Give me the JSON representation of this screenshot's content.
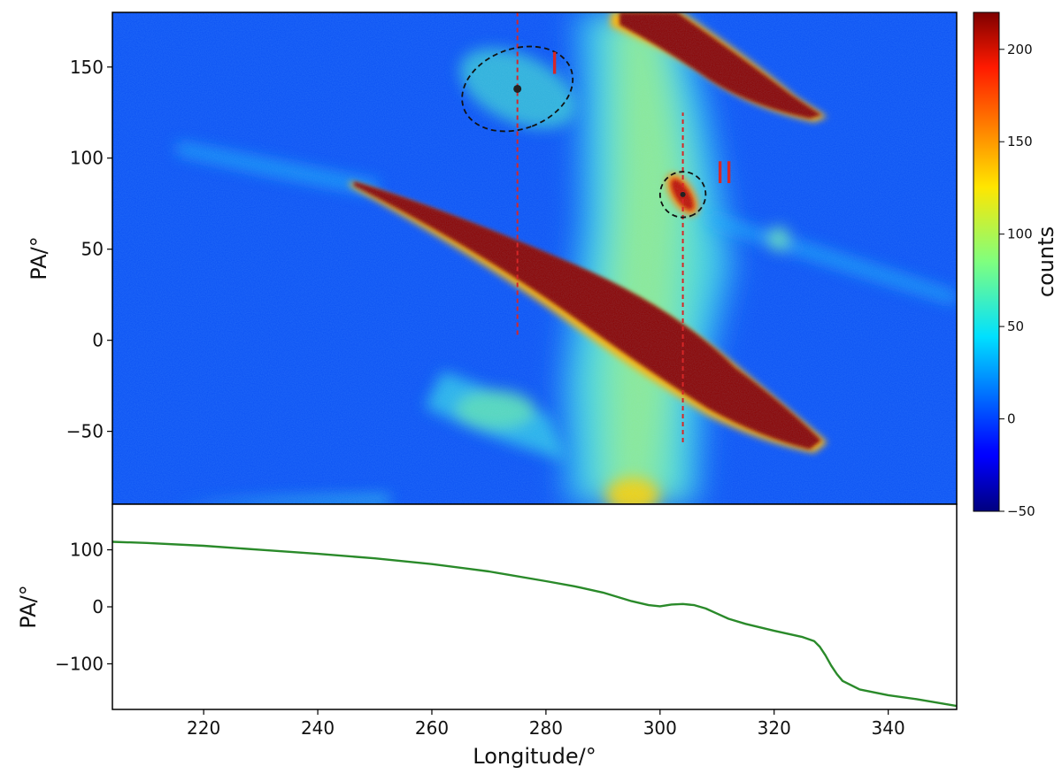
{
  "chart_data": [
    {
      "type": "heatmap",
      "title": "",
      "xlabel": "",
      "ylabel": "PA/°",
      "xlim": [
        204,
        352
      ],
      "ylim": [
        -90,
        180
      ],
      "yticks": [
        150,
        100,
        50,
        0,
        -50
      ],
      "yticklabels": [
        "150",
        "100",
        "50",
        "0",
        "−50"
      ],
      "colorbar": {
        "label": "counts",
        "range": [
          -50,
          220
        ],
        "ticks": [
          200,
          150,
          100,
          50,
          0,
          -50
        ],
        "ticklabels": [
          "200",
          "150",
          "100",
          "50",
          "0",
          "−50"
        ],
        "colormap": "jet"
      },
      "markers": [
        {
          "label": "I",
          "lon": 275,
          "pa": 138,
          "ellipse_width": 20,
          "ellipse_height": 44,
          "ellipse_angle_deg": -20,
          "line_pa": [
            3,
            180
          ]
        },
        {
          "label": "II",
          "lon": 304,
          "pa": 80,
          "ellipse_width": 8,
          "ellipse_height": 25,
          "ellipse_angle_deg": -30,
          "line_pa": [
            -56,
            125
          ]
        }
      ],
      "colors": {
        "marker_line": "#d62728",
        "ellipse": "#111111",
        "label": "#d62728"
      }
    },
    {
      "type": "line",
      "xlabel": "Longitude/°",
      "ylabel": "PA/°",
      "xlim": [
        204,
        352
      ],
      "ylim": [
        -180,
        180
      ],
      "xticks": [
        220,
        240,
        260,
        280,
        300,
        320,
        340
      ],
      "xticklabels": [
        "220",
        "240",
        "260",
        "280",
        "300",
        "320",
        "340"
      ],
      "yticks": [
        100,
        0,
        -100
      ],
      "yticklabels": [
        "100",
        "0",
        "−100"
      ],
      "series": [
        {
          "color": "#2a8a2a",
          "x": [
            204,
            210,
            220,
            230,
            240,
            250,
            260,
            270,
            280,
            285,
            290,
            295,
            298,
            300,
            302,
            304,
            306,
            308,
            310,
            312,
            315,
            320,
            325,
            327,
            328,
            329,
            330,
            331,
            332,
            335,
            340,
            345,
            352
          ],
          "y": [
            114,
            112,
            107,
            100,
            93,
            85,
            75,
            62,
            45,
            36,
            25,
            10,
            3,
            1,
            4,
            5,
            3,
            -3,
            -12,
            -21,
            -30,
            -42,
            -53,
            -60,
            -70,
            -85,
            -103,
            -118,
            -130,
            -145,
            -155,
            -162,
            -174
          ]
        }
      ]
    }
  ]
}
